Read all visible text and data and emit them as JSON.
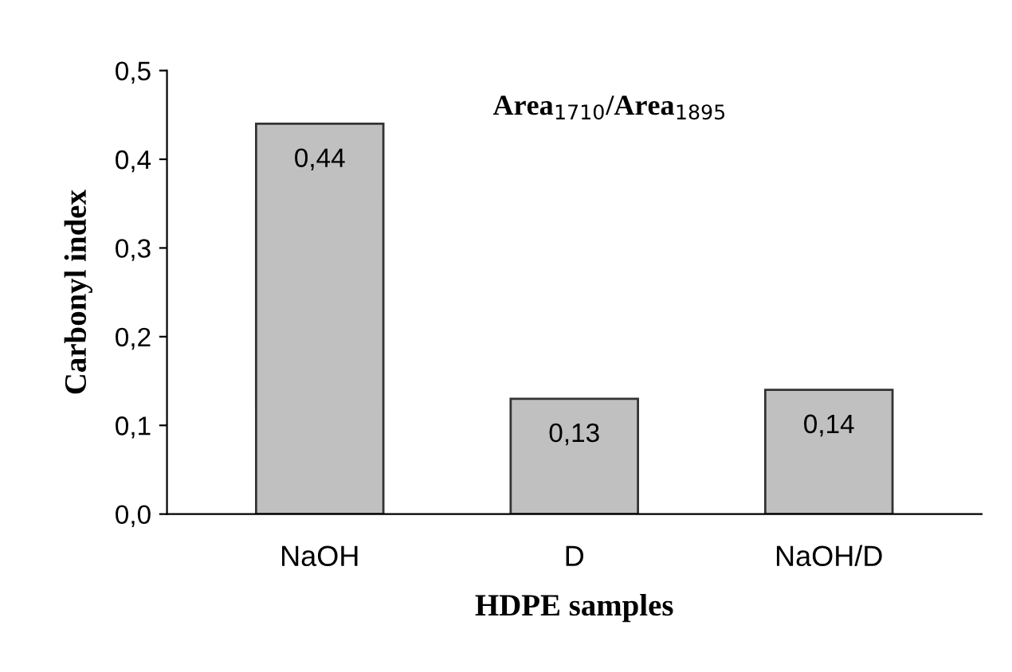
{
  "chart_data": {
    "type": "bar",
    "xlabel": "HDPE samples",
    "ylabel": "Carbonyl index",
    "categories": [
      "NaOH",
      "D",
      "NaOH/D"
    ],
    "values": [
      0.44,
      0.13,
      0.14
    ],
    "value_labels": [
      "0,44",
      "0,13",
      "0,14"
    ],
    "color": "#c0c0c0",
    "ylim": [
      0,
      0.5
    ],
    "yticks": [
      {
        "value": 0,
        "label": "0,0"
      },
      {
        "value": 0.1,
        "label": "0,1"
      },
      {
        "value": 0.2,
        "label": "0,2"
      },
      {
        "value": 0.3,
        "label": "0,3"
      },
      {
        "value": 0.4,
        "label": "0,4"
      },
      {
        "value": 0.5,
        "label": "0,5"
      }
    ],
    "annotations": [
      "Area$_{1710}$/Area$_{1895}$"
    ],
    "grid": false,
    "legend": false
  }
}
